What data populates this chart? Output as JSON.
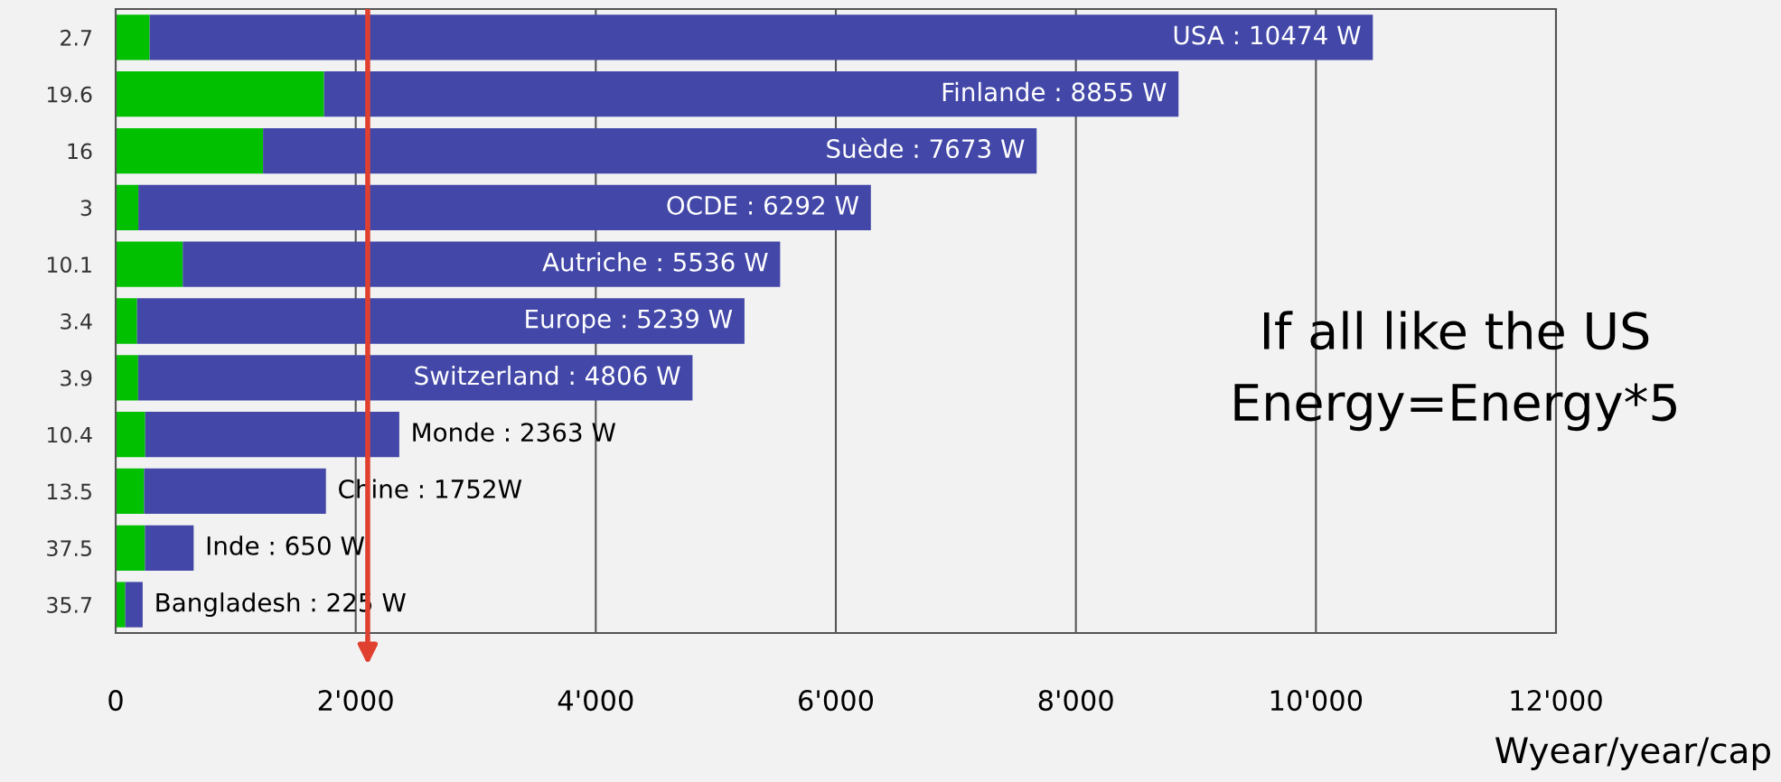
{
  "chart_data": {
    "type": "bar",
    "orientation": "horizontal",
    "stacked": true,
    "categories": [
      "2.7",
      "19.6",
      "16",
      "3",
      "10.1",
      "3.4",
      "3.9",
      "10.4",
      "13.5",
      "37.5",
      "35.7"
    ],
    "series": [
      {
        "color": "#00c000",
        "values": [
          283,
          1736,
          1228,
          189,
          559,
          178,
          187,
          246,
          237,
          244,
          80
        ]
      },
      {
        "color": "#4348a8",
        "values": [
          10191,
          7119,
          6445,
          6103,
          4977,
          5061,
          4619,
          2117,
          1515,
          406,
          145
        ]
      }
    ],
    "xlim": [
      0,
      12000
    ],
    "xticks": [
      {
        "value": 0,
        "label": "0"
      },
      {
        "value": 2000,
        "label": "2'000"
      },
      {
        "value": 4000,
        "label": "4'000"
      },
      {
        "value": 6000,
        "label": "6'000"
      },
      {
        "value": 8000,
        "label": "8'000"
      },
      {
        "value": 10000,
        "label": "10'000"
      },
      {
        "value": 12000,
        "label": "12'000"
      }
    ],
    "xlabel": "Wyear/year/cap",
    "grid": "x",
    "legend": false,
    "ref_lines": [
      {
        "axis": "x",
        "value": 2100,
        "color": "#e04030"
      }
    ],
    "annotations": [
      "If all like the US\nEnergy=Energy*5",
      {
        "text": "USA : 10474 W",
        "x": 10474,
        "y": "2.7"
      },
      {
        "text": "Finlande : 8855 W",
        "x": 8855,
        "y": "19.6"
      },
      {
        "text": "Suède : 7673 W",
        "x": 7673,
        "y": "16"
      },
      {
        "text": "OCDE : 6292 W",
        "x": 6292,
        "y": "3"
      },
      {
        "text": "Autriche : 5536 W",
        "x": 5536,
        "y": "10.1"
      },
      {
        "text": "Europe : 5239 W",
        "x": 5239,
        "y": "3.4"
      },
      {
        "text": "Switzerland : 4806 W",
        "x": 4806,
        "y": "3.9"
      },
      {
        "text": "Monde : 2363 W",
        "x": 2363,
        "y": "10.4"
      },
      {
        "text": "Chine : 1752W",
        "x": 1752,
        "y": "13.5"
      },
      {
        "text": "Inde : 650 W",
        "x": 650,
        "y": "37.5"
      },
      {
        "text": "Bangladesh : 225 W",
        "x": 225,
        "y": "35.7"
      }
    ]
  }
}
